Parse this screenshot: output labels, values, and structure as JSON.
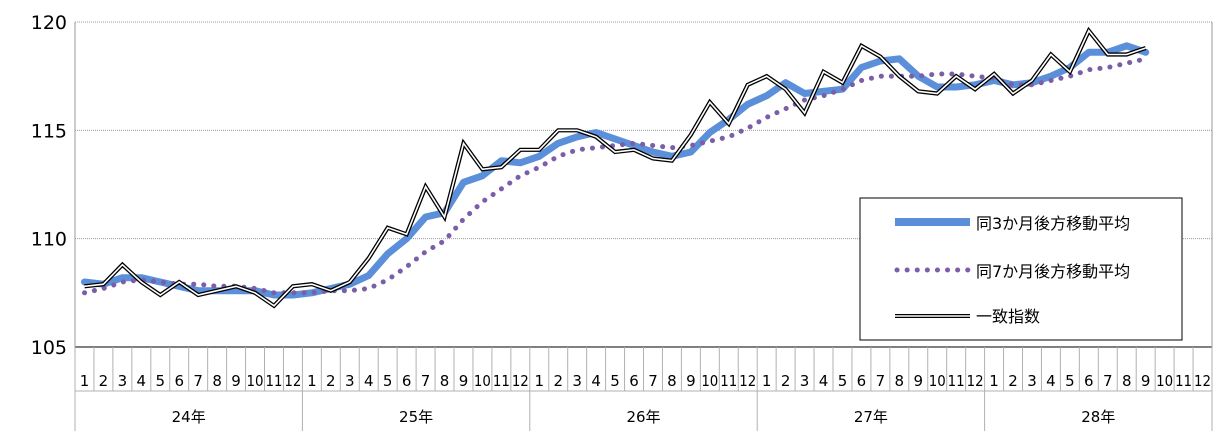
{
  "chart_data": {
    "type": "line",
    "ylim": [
      105,
      120
    ],
    "y_ticks": [
      "105",
      "110",
      "115",
      "120"
    ],
    "month_labels": [
      "1",
      "2",
      "3",
      "4",
      "5",
      "6",
      "7",
      "8",
      "9",
      "10",
      "11",
      "12"
    ],
    "years": [
      "24年",
      "25年",
      "26年",
      "27年",
      "28年"
    ],
    "grid": true,
    "legend_position": "right",
    "series": [
      {
        "name": "一致指数",
        "style": "double-line",
        "color": "#000000",
        "values": [
          107.8,
          107.9,
          108.8,
          108.0,
          107.4,
          108.0,
          107.4,
          107.6,
          107.8,
          107.5,
          106.9,
          107.8,
          107.9,
          107.6,
          108.0,
          109.1,
          110.5,
          110.2,
          112.4,
          111.0,
          114.4,
          113.2,
          113.3,
          114.1,
          114.1,
          115.0,
          115.0,
          114.7,
          114.0,
          114.1,
          113.7,
          113.6,
          114.8,
          116.3,
          115.3,
          117.1,
          117.5,
          116.9,
          115.8,
          117.7,
          117.2,
          118.9,
          118.4,
          117.5,
          116.8,
          116.7,
          117.5,
          116.9,
          117.6,
          116.7,
          117.3,
          118.5,
          117.7,
          119.6,
          118.5,
          118.5,
          118.8
        ]
      },
      {
        "name": "同3か月後方移動平均",
        "style": "thick",
        "color": "#5b8fd9",
        "values": [
          108.0,
          107.9,
          108.2,
          108.2,
          108.0,
          107.8,
          107.6,
          107.6,
          107.6,
          107.6,
          107.4,
          107.4,
          107.5,
          107.7,
          107.9,
          108.3,
          109.3,
          110.0,
          111.0,
          111.2,
          112.6,
          112.9,
          113.6,
          113.5,
          113.8,
          114.4,
          114.7,
          114.9,
          114.6,
          114.3,
          114.0,
          113.8,
          114.0,
          114.9,
          115.5,
          116.2,
          116.6,
          117.2,
          116.7,
          116.8,
          116.9,
          117.9,
          118.2,
          118.3,
          117.5,
          117.0,
          117.0,
          117.1,
          117.3,
          117.1,
          117.2,
          117.5,
          117.9,
          118.6,
          118.6,
          118.9,
          118.6
        ]
      },
      {
        "name": "同7か月後方移動平均",
        "style": "dotted",
        "color": "#7b5ea7",
        "values": [
          107.5,
          107.7,
          108.0,
          108.1,
          108.0,
          107.9,
          107.9,
          107.8,
          107.8,
          107.7,
          107.5,
          107.5,
          107.5,
          107.6,
          107.6,
          107.7,
          108.1,
          108.7,
          109.4,
          109.9,
          110.9,
          111.7,
          112.3,
          112.9,
          113.3,
          113.8,
          114.1,
          114.2,
          114.3,
          114.4,
          114.3,
          114.2,
          114.3,
          114.5,
          114.7,
          115.1,
          115.6,
          116.0,
          116.4,
          116.6,
          116.9,
          117.3,
          117.5,
          117.5,
          117.5,
          117.6,
          117.6,
          117.5,
          117.4,
          117.1,
          117.1,
          117.3,
          117.5,
          117.8,
          117.9,
          118.1,
          118.3
        ]
      }
    ]
  }
}
